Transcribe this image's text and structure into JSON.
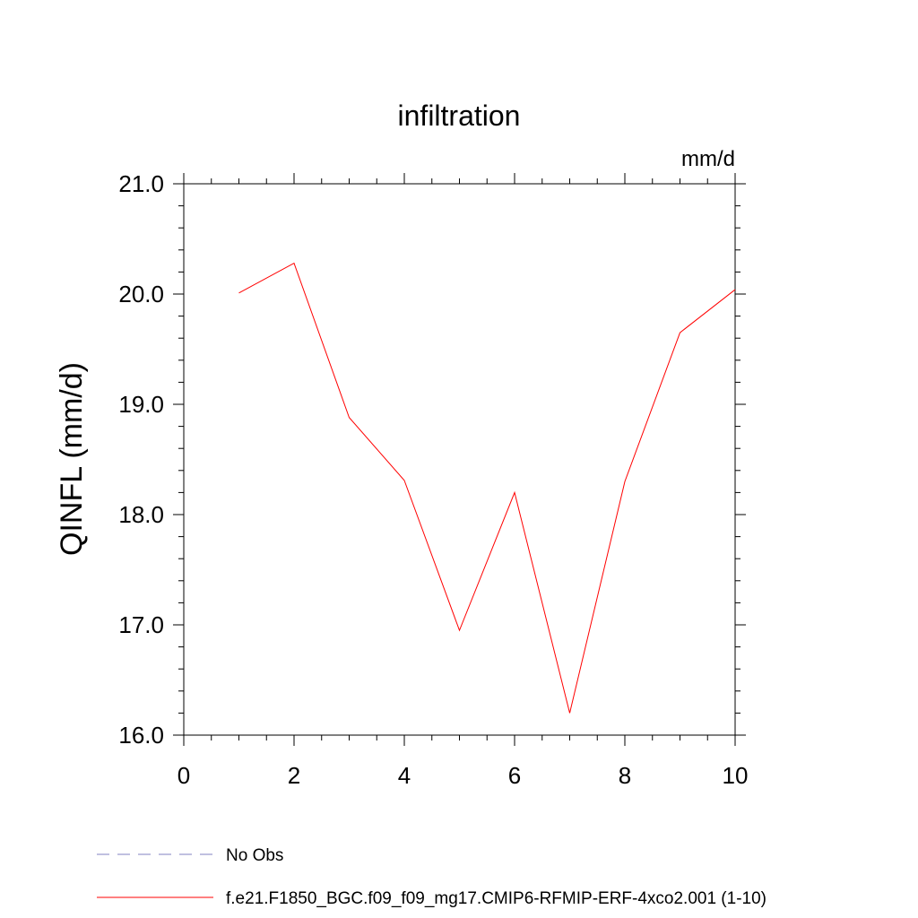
{
  "chart_data": {
    "type": "line",
    "title": "infiltration",
    "units_label": "mm/d",
    "ylabel": "QINFL  (mm/d)",
    "xlabel": "",
    "xlim": [
      0,
      10
    ],
    "ylim": [
      16.0,
      21.0
    ],
    "x_ticks": [
      0,
      2,
      4,
      6,
      8,
      10
    ],
    "x_tick_labels": [
      "0",
      "2",
      "4",
      "6",
      "8",
      "10"
    ],
    "y_ticks": [
      16.0,
      17.0,
      18.0,
      19.0,
      20.0,
      21.0
    ],
    "y_tick_labels": [
      "16.0",
      "17.0",
      "18.0",
      "19.0",
      "20.0",
      "21.0"
    ],
    "grid": false,
    "legend_position": "bottom",
    "series": [
      {
        "name": "f.e21.F1850_BGC.f09_f09_mg17.CMIP6-RFMIP-ERF-4xco2.001 (1-10)",
        "color": "#ff0000",
        "style": "solid",
        "x": [
          1,
          2,
          3,
          4,
          5,
          6,
          7,
          8,
          9,
          10
        ],
        "y": [
          20.01,
          20.28,
          18.88,
          18.31,
          16.95,
          18.2,
          16.2,
          18.3,
          19.65,
          20.04
        ]
      },
      {
        "name": "No Obs",
        "color": "#8080c0",
        "style": "dashed",
        "x": [],
        "y": []
      }
    ]
  }
}
